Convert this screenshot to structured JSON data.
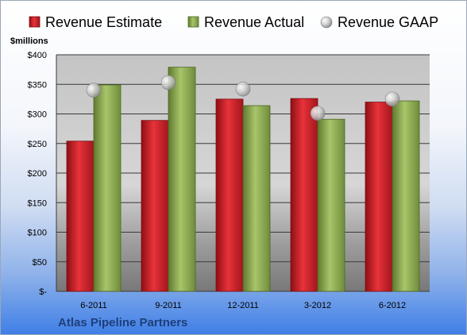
{
  "company": "Atlas Pipeline Partners",
  "chart_data": {
    "type": "bar",
    "unit_label": "$millions",
    "categories": [
      "6-2011",
      "9-2011",
      "12-2011",
      "3-2012",
      "6-2012"
    ],
    "series": [
      {
        "name": "Revenue Estimate",
        "kind": "bar",
        "color": "#cc1f26",
        "values": [
          254,
          289,
          325,
          326,
          320
        ]
      },
      {
        "name": "Revenue Actual",
        "kind": "bar",
        "color": "#8cab4e",
        "values": [
          349,
          379,
          314,
          291,
          322
        ]
      },
      {
        "name": "Revenue GAAP",
        "kind": "marker",
        "color": "#c8c8c8",
        "values": [
          340,
          353,
          342,
          301,
          325
        ]
      }
    ],
    "ylim": [
      0,
      400
    ],
    "yticks": [
      {
        "value": 0,
        "label": "$-"
      },
      {
        "value": 50,
        "label": "$50"
      },
      {
        "value": 100,
        "label": "$100"
      },
      {
        "value": 150,
        "label": "$150"
      },
      {
        "value": 200,
        "label": "$200"
      },
      {
        "value": 250,
        "label": "$250"
      },
      {
        "value": 300,
        "label": "$300"
      },
      {
        "value": 350,
        "label": "$350"
      },
      {
        "value": 400,
        "label": "$400"
      }
    ],
    "grid": true,
    "legend": "top"
  }
}
